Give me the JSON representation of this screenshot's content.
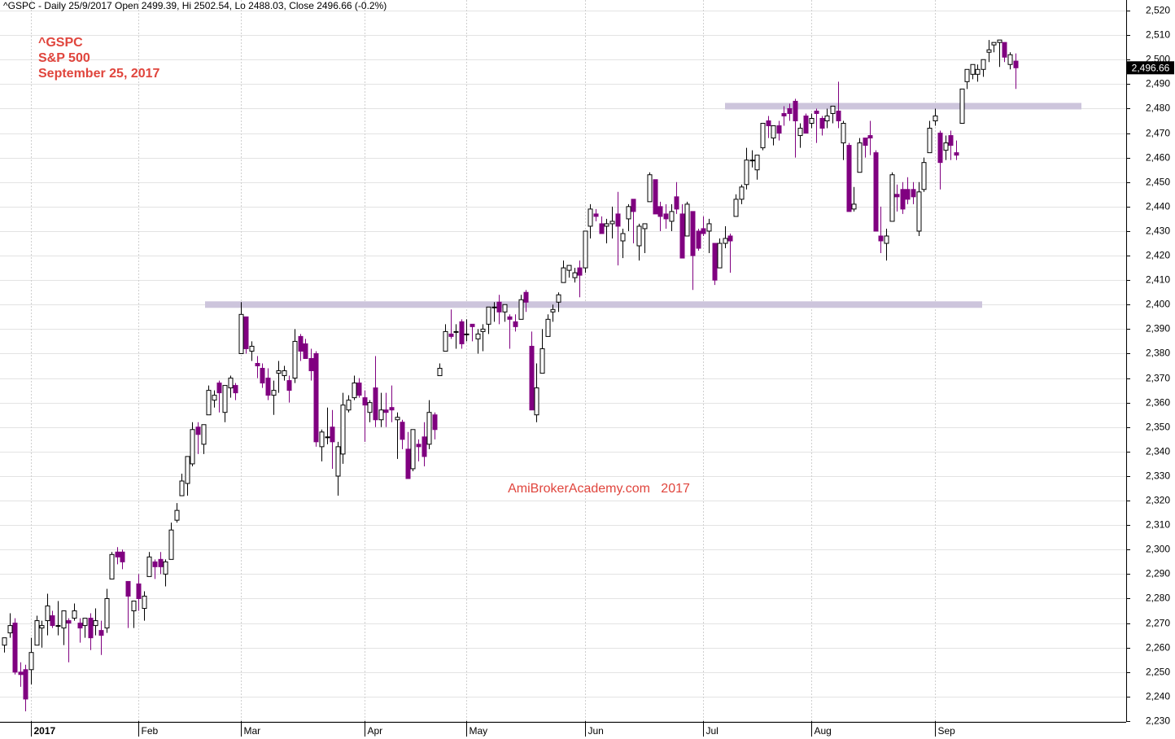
{
  "chart_data": {
    "type": "candlestick",
    "title": "^GSPC - Daily 25/9/2017 Open 2499.39, Hi 2502.54, Lo 2488.03, Close 2496.66 (-0.2%)",
    "annotations": [
      "^GSPC",
      "S&P 500",
      "September 25, 2017"
    ],
    "watermark": "AmiBrokerAcademy.com   2017",
    "up_color": "#ffffff",
    "down_color": "#800080",
    "grid": true,
    "levels": [
      2400,
      2481
    ],
    "level_color": "#cdc5dc",
    "last_price": {
      "value": 2496.66,
      "label": "2,496.66"
    },
    "categories": [
      null,
      null,
      null,
      null,
      null,
      "2017",
      null,
      null,
      null,
      null,
      null,
      null,
      null,
      null,
      null,
      null,
      null,
      null,
      null,
      null,
      null,
      null,
      null,
      null,
      null,
      "Feb",
      null,
      null,
      null,
      null,
      null,
      null,
      null,
      null,
      null,
      null,
      null,
      null,
      null,
      null,
      null,
      null,
      null,
      null,
      "Mar",
      null,
      null,
      null,
      null,
      null,
      null,
      null,
      null,
      null,
      null,
      null,
      null,
      null,
      null,
      null,
      null,
      null,
      null,
      null,
      null,
      null,
      null,
      "Apr",
      null,
      null,
      null,
      null,
      null,
      null,
      null,
      null,
      null,
      null,
      null,
      null,
      null,
      null,
      null,
      null,
      null,
      null,
      "May",
      null,
      null,
      null,
      null,
      null,
      null,
      null,
      null,
      null,
      null,
      null,
      null,
      null,
      null,
      null,
      null,
      null,
      null,
      null,
      null,
      null,
      "Jun",
      null,
      null,
      null,
      null,
      null,
      null,
      null,
      null,
      null,
      null,
      null,
      null,
      null,
      null,
      null,
      null,
      null,
      null,
      null,
      null,
      null,
      "Jul",
      null,
      null,
      null,
      null,
      null,
      null,
      null,
      null,
      null,
      null,
      null,
      null,
      null,
      null,
      null,
      null,
      null,
      null,
      null,
      "Aug",
      null,
      null,
      null,
      null,
      null,
      null,
      null,
      null,
      null,
      null,
      null,
      null,
      null,
      null,
      null,
      null,
      null,
      null,
      null,
      null,
      null,
      null,
      "Sep",
      null,
      null,
      null,
      null,
      null,
      null,
      null,
      null,
      null,
      null,
      null,
      null,
      null,
      null,
      null
    ],
    "open": [
      2261,
      2266,
      2270,
      2250,
      2251,
      2251,
      2261,
      2268,
      2271,
      2273,
      2269,
      2268,
      2271,
      2272,
      2270,
      2269,
      2272,
      2269,
      2267,
      2268,
      2288,
      2299,
      2299,
      2287,
      2275,
      2286,
      2276,
      2289,
      2295,
      2296,
      2290,
      2296,
      2312,
      2322,
      2327,
      2335,
      2350,
      2343,
      2355,
      2361,
      2368,
      2356,
      2366,
      2367,
      2380,
      2395,
      2381,
      2376,
      2374,
      2370,
      2363,
      2372,
      2371,
      2369,
      2370,
      2387,
      2384,
      2378,
      2380,
      2342,
      2346,
      2350,
      2330,
      2339,
      2357,
      2362,
      2368,
      2362,
      2356,
      2366,
      2353,
      2357,
      2358,
      2353,
      2352,
      2341,
      2333,
      2343,
      2346,
      2343,
      2355,
      2371,
      2381,
      2388,
      2389,
      2393,
      2388,
      2392,
      2386,
      2389,
      2392,
      2399,
      2401,
      2397,
      2395,
      2393,
      2394,
      2405,
      2383,
      2355,
      2372,
      2387,
      2397,
      2401,
      2409,
      2414,
      2411,
      2415,
      2415,
      2432,
      2437,
      2433,
      2432,
      2433,
      2437,
      2426,
      2435,
      2443,
      2424,
      2431,
      2442,
      2451,
      2440,
      2437,
      2434,
      2444,
      2437,
      2428,
      2438,
      2430,
      2431,
      2430,
      2425,
      2415,
      2425,
      2428,
      2436,
      2443,
      2449,
      2459,
      2455,
      2464,
      2475,
      2468,
      2473,
      2478,
      2480,
      2483,
      2469,
      2477,
      2474,
      2479,
      2476,
      2475,
      2478,
      2479,
      2466,
      2465,
      2439,
      2454,
      2468,
      2469,
      2462,
      2428,
      2425,
      2434,
      2445,
      2447,
      2447,
      2447,
      2430,
      2447,
      2462,
      2475,
      2470,
      2463,
      2469,
      2462,
      2474,
      2491,
      2494,
      2494,
      2496,
      2503,
      2506,
      2507,
      2507,
      2498,
      2499.39
    ],
    "high": [
      2264,
      2274,
      2272,
      2254,
      2253,
      2264,
      2273,
      2271,
      2282,
      2275,
      2279,
      2275,
      2272,
      2278,
      2272,
      2272,
      2274,
      2276,
      2271,
      2284,
      2299,
      2301,
      2300,
      2287,
      2279,
      2290,
      2283,
      2299,
      2296,
      2299,
      2296,
      2311,
      2319,
      2331,
      2338,
      2352,
      2352,
      2351,
      2367,
      2365,
      2369,
      2367,
      2371,
      2368,
      2401,
      2395,
      2385,
      2379,
      2376,
      2374,
      2369,
      2377,
      2375,
      2371,
      2390,
      2388,
      2386,
      2382,
      2381,
      2349,
      2358,
      2357,
      2344,
      2364,
      2363,
      2371,
      2370,
      2365,
      2361,
      2379,
      2364,
      2364,
      2367,
      2356,
      2353,
      2348,
      2349,
      2345,
      2352,
      2361,
      2356,
      2376,
      2392,
      2398,
      2392,
      2394,
      2394,
      2392,
      2390,
      2392,
      2399,
      2401,
      2404,
      2400,
      2396,
      2396,
      2404,
      2406,
      2389,
      2376,
      2390,
      2396,
      2400,
      2405,
      2418,
      2416,
      2415,
      2418,
      2430,
      2441,
      2439,
      2436,
      2435,
      2440,
      2446,
      2431,
      2441,
      2443,
      2433,
      2433,
      2454,
      2451,
      2442,
      2441,
      2441,
      2450,
      2441,
      2442,
      2438,
      2431,
      2436,
      2435,
      2425,
      2427,
      2432,
      2429,
      2445,
      2449,
      2464,
      2463,
      2461,
      2474,
      2477,
      2473,
      2475,
      2481,
      2482,
      2484,
      2474,
      2478,
      2478,
      2480,
      2477,
      2480,
      2481,
      2491,
      2475,
      2466,
      2448,
      2468,
      2468,
      2475,
      2463,
      2440,
      2431,
      2454,
      2449,
      2450,
      2452,
      2450,
      2450,
      2460,
      2475,
      2480,
      2471,
      2469,
      2471,
      2467,
      2488,
      2496,
      2498,
      2498,
      2500,
      2508,
      2507,
      2508,
      2507,
      2503,
      2502.54
    ],
    "low": [
      2258,
      2264,
      2249,
      2244,
      2234,
      2245,
      2261,
      2260,
      2265,
      2268,
      2265,
      2261,
      2254,
      2271,
      2262,
      2264,
      2259,
      2265,
      2257,
      2266,
      2288,
      2294,
      2292,
      2268,
      2268,
      2275,
      2271,
      2289,
      2288,
      2290,
      2285,
      2296,
      2311,
      2322,
      2322,
      2334,
      2339,
      2339,
      2355,
      2358,
      2356,
      2352,
      2362,
      2361,
      2380,
      2380,
      2377,
      2370,
      2366,
      2361,
      2355,
      2364,
      2369,
      2360,
      2368,
      2377,
      2378,
      2369,
      2342,
      2336,
      2343,
      2333,
      2322,
      2335,
      2356,
      2361,
      2362,
      2344,
      2352,
      2350,
      2350,
      2350,
      2352,
      2337,
      2341,
      2329,
      2332,
      2336,
      2334,
      2341,
      2345,
      2371,
      2381,
      2386,
      2382,
      2382,
      2385,
      2385,
      2380,
      2381,
      2388,
      2393,
      2392,
      2393,
      2382,
      2389,
      2394,
      2397,
      2357,
      2352,
      2372,
      2387,
      2393,
      2397,
      2409,
      2411,
      2409,
      2403,
      2413,
      2427,
      2434,
      2429,
      2425,
      2427,
      2416,
      2419,
      2430,
      2425,
      2418,
      2421,
      2442,
      2437,
      2430,
      2431,
      2430,
      2437,
      2419,
      2428,
      2406,
      2422,
      2428,
      2421,
      2408,
      2415,
      2423,
      2413,
      2436,
      2441,
      2447,
      2456,
      2451,
      2463,
      2468,
      2465,
      2467,
      2473,
      2475,
      2460,
      2464,
      2470,
      2472,
      2466,
      2469,
      2472,
      2474,
      2472,
      2459,
      2438,
      2438,
      2454,
      2460,
      2461,
      2430,
      2421,
      2418,
      2434,
      2438,
      2437,
      2441,
      2441,
      2428,
      2446,
      2462,
      2473,
      2447,
      2459,
      2459,
      2459,
      2474,
      2488,
      2492,
      2491,
      2493,
      2499,
      2503,
      2497,
      2499,
      2496,
      2488.03
    ],
    "close": [
      2264,
      2269,
      2250,
      2249,
      2239,
      2258,
      2271,
      2269,
      2277,
      2269,
      2269,
      2275,
      2270,
      2275,
      2268,
      2272,
      2264,
      2271,
      2265,
      2280,
      2298,
      2297,
      2295,
      2281,
      2279,
      2280,
      2281,
      2297,
      2293,
      2293,
      2295,
      2308,
      2316,
      2328,
      2338,
      2349,
      2347,
      2351,
      2365,
      2363,
      2364,
      2367,
      2370,
      2364,
      2396,
      2382,
      2383,
      2375,
      2368,
      2363,
      2365,
      2373,
      2373,
      2365,
      2385,
      2381,
      2378,
      2373,
      2344,
      2348,
      2346,
      2344,
      2342,
      2359,
      2361,
      2368,
      2363,
      2359,
      2360,
      2353,
      2357,
      2356,
      2357,
      2354,
      2345,
      2329,
      2349,
      2342,
      2338,
      2356,
      2349,
      2374,
      2389,
      2387,
      2389,
      2384,
      2388,
      2391,
      2388,
      2390,
      2399,
      2399,
      2397,
      2400,
      2394,
      2391,
      2402,
      2401,
      2357,
      2366,
      2382,
      2394,
      2398,
      2404,
      2415,
      2416,
      2413,
      2412,
      2430,
      2439,
      2436,
      2429,
      2433,
      2434,
      2432,
      2429,
      2440,
      2438,
      2432,
      2433,
      2453,
      2437,
      2436,
      2435,
      2438,
      2439,
      2419,
      2441,
      2420,
      2423,
      2429,
      2433,
      2410,
      2425,
      2427,
      2426,
      2443,
      2448,
      2459,
      2459,
      2461,
      2474,
      2473,
      2473,
      2470,
      2477,
      2478,
      2475,
      2472,
      2470,
      2476,
      2478,
      2472,
      2477,
      2481,
      2475,
      2474,
      2438,
      2441,
      2466,
      2465,
      2468,
      2430,
      2426,
      2428,
      2453,
      2444,
      2439,
      2443,
      2444,
      2446,
      2458,
      2472,
      2477,
      2458,
      2466,
      2465,
      2461,
      2488,
      2496,
      2498,
      2496,
      2500,
      2504,
      2507,
      2508,
      2501,
      2502,
      2496.66
    ],
    "ylim": [
      2230,
      2524
    ],
    "yticks": [
      {
        "value": 2230,
        "label": "2,230"
      },
      {
        "value": 2240,
        "label": "2,240"
      },
      {
        "value": 2250,
        "label": "2,250"
      },
      {
        "value": 2260,
        "label": "2,260"
      },
      {
        "value": 2270,
        "label": "2,270"
      },
      {
        "value": 2280,
        "label": "2,280"
      },
      {
        "value": 2290,
        "label": "2,290"
      },
      {
        "value": 2300,
        "label": "2,300"
      },
      {
        "value": 2310,
        "label": "2,310"
      },
      {
        "value": 2320,
        "label": "2,320"
      },
      {
        "value": 2330,
        "label": "2,330"
      },
      {
        "value": 2340,
        "label": "2,340"
      },
      {
        "value": 2350,
        "label": "2,350"
      },
      {
        "value": 2360,
        "label": "2,360"
      },
      {
        "value": 2370,
        "label": "2,370"
      },
      {
        "value": 2380,
        "label": "2,380"
      },
      {
        "value": 2390,
        "label": "2,390"
      },
      {
        "value": 2400,
        "label": "2,400"
      },
      {
        "value": 2410,
        "label": "2,410"
      },
      {
        "value": 2420,
        "label": "2,420"
      },
      {
        "value": 2430,
        "label": "2,430"
      },
      {
        "value": 2440,
        "label": "2,440"
      },
      {
        "value": 2450,
        "label": "2,450"
      },
      {
        "value": 2460,
        "label": "2,460"
      },
      {
        "value": 2470,
        "label": "2,470"
      },
      {
        "value": 2480,
        "label": "2,480"
      },
      {
        "value": 2490,
        "label": "2,490"
      },
      {
        "value": 2500,
        "label": "2,500"
      },
      {
        "value": 2510,
        "label": "2,510"
      },
      {
        "value": 2520,
        "label": "2,520"
      }
    ]
  }
}
